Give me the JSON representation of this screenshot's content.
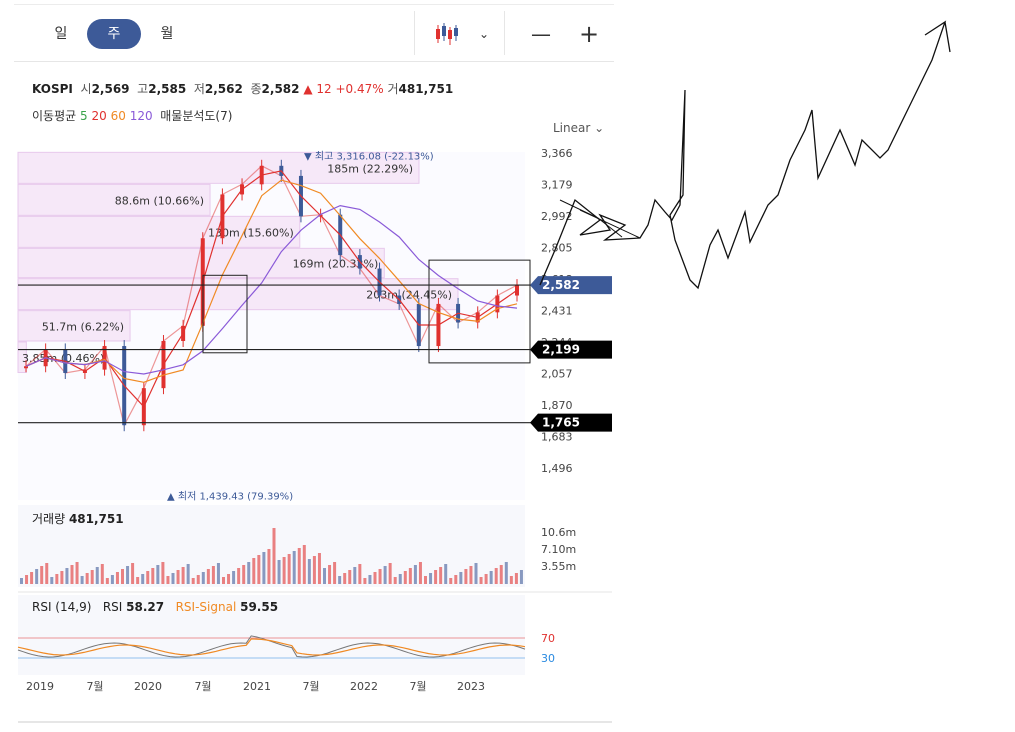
{
  "tabs": [
    {
      "label": "일",
      "active": false
    },
    {
      "label": "주",
      "active": true
    },
    {
      "label": "월",
      "active": false
    }
  ],
  "toolbar": {
    "chart_type_icon": "candlestick-icon",
    "dropdown_icon": "chevron-down-icon",
    "zoom_out": "—",
    "zoom_in": "+"
  },
  "info": {
    "symbol": "KOSPI",
    "open_label": "시",
    "open": "2,569",
    "high_label": "고",
    "high": "2,585",
    "low_label": "저",
    "low": "2,562",
    "close_label": "종",
    "close": "2,582",
    "change": "▲ 12",
    "change_pct": "+0.47%",
    "volume_label": "거",
    "volume": "481,751"
  },
  "ma_legend": {
    "label": "이동평균",
    "p5": "5",
    "p20": "20",
    "p60": "60",
    "p120": "120",
    "extra": "매물분석도(7)",
    "c5": "#3aa34a",
    "c20": "#e0312f",
    "c60": "#f08a24",
    "c120": "#8a5ad8"
  },
  "scale_mode": "Linear",
  "price_axis": {
    "ticks": [
      "3,366",
      "3,179",
      "2,992",
      "2,805",
      "2,618",
      "2,431",
      "2,244",
      "2,057",
      "1,870",
      "1,683",
      "1,496"
    ],
    "current": "2,582",
    "current_color": "#3d5a98"
  },
  "h_lines": [
    {
      "value": "2,582"
    },
    {
      "value": "2,199"
    },
    {
      "value": "1,765"
    }
  ],
  "high_marker": "▼ 최고 3,316.08 (-22.13%)",
  "low_marker": "▲ 최저 1,439.43 (79.39%)",
  "volume_profile": [
    {
      "label": "185m (22.29%)",
      "low": 3180,
      "high": 3370,
      "value": 185
    },
    {
      "label": "88.6m (10.66%)",
      "low": 2990,
      "high": 3180,
      "value": 88.6
    },
    {
      "label": "130m (15.60%)",
      "low": 2800,
      "high": 2990,
      "value": 130
    },
    {
      "label": "169m (20.32%)",
      "low": 2620,
      "high": 2800,
      "value": 169
    },
    {
      "label": "203m (24.45%)",
      "low": 2430,
      "high": 2620,
      "value": 203
    },
    {
      "label": "51.7m (6.22%)",
      "low": 2244,
      "high": 2430,
      "value": 51.7
    },
    {
      "label": "3.85m (0.46%)",
      "low": 2057,
      "high": 2244,
      "value": 3.85
    }
  ],
  "volume_panel": {
    "label": "거래량",
    "value": "481,751",
    "ticks": [
      "10.6m",
      "7.10m",
      "3.55m"
    ]
  },
  "rsi_panel": {
    "label": "RSI (14,9)",
    "rsi_label": "RSI",
    "rsi": "58.27",
    "signal_label": "RSI-Signal",
    "signal": "59.55",
    "levels": [
      "70",
      "30"
    ]
  },
  "x_axis": [
    "2019",
    "7월",
    "2020",
    "7월",
    "2021",
    "7월",
    "2022",
    "7월",
    "2023"
  ],
  "chart_data": {
    "type": "candlestick",
    "title": "KOSPI",
    "x": [
      "2019-01",
      "2019-04",
      "2019-07",
      "2019-10",
      "2020-01",
      "2020-03",
      "2020-05",
      "2020-07",
      "2020-10",
      "2020-12",
      "2021-01",
      "2021-04",
      "2021-06",
      "2021-08",
      "2021-10",
      "2021-12",
      "2022-02",
      "2022-04",
      "2022-06",
      "2022-08",
      "2022-09",
      "2022-11",
      "2023-01",
      "2023-03",
      "2023-05",
      "2023-06"
    ],
    "close": [
      2100,
      2200,
      2060,
      2080,
      2220,
      1750,
      1970,
      2250,
      2340,
      2860,
      3120,
      3180,
      3290,
      3230,
      2990,
      3000,
      2760,
      2680,
      2520,
      2470,
      2220,
      2470,
      2360,
      2420,
      2520,
      2582
    ],
    "ylim": [
      1439,
      3400
    ],
    "high": 3316.08,
    "low": 1439.43,
    "annotations": [
      "▼ 최고 3,316.08 (-22.13%)",
      "▲ 최저 1,439.43 (79.39%)"
    ],
    "horizontal_levels": [
      2582,
      2199,
      1765
    ]
  },
  "drawing": {
    "description": "hand-drawn upward arrow sketch"
  }
}
